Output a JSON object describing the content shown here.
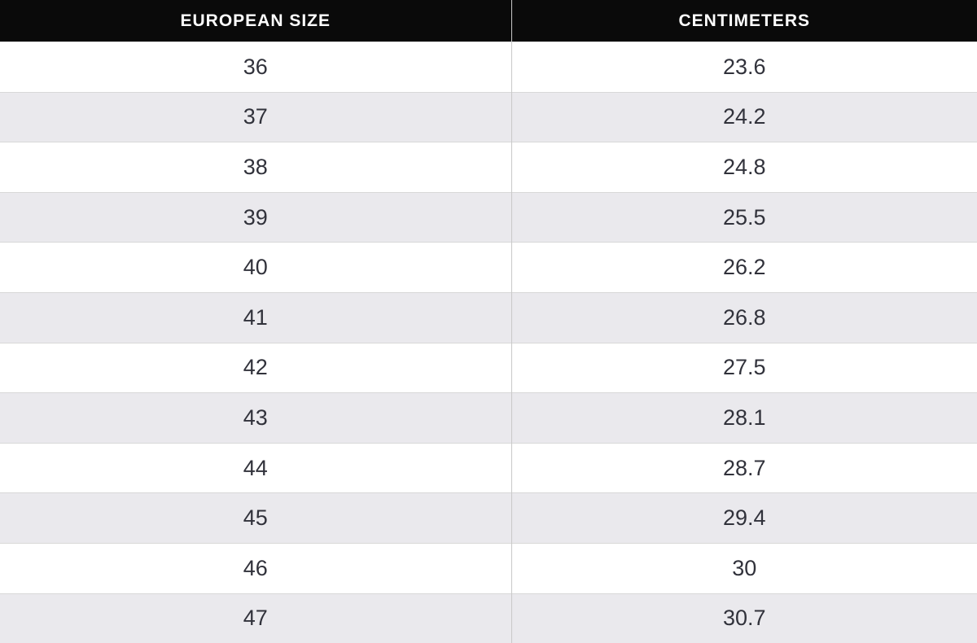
{
  "colors": {
    "header_bg": "#0A0A0A",
    "header_text": "#FFFFFF",
    "row_white": "#FFFFFF",
    "row_alt_gray": "#EAE9ED",
    "row_border": "#D8D8D8",
    "column_divider": "#C9C9C9",
    "cell_text": "#31323B"
  },
  "size_chart": {
    "columns": [
      "EUROPEAN SIZE",
      "CENTIMETERS"
    ],
    "rows": [
      [
        "36",
        "23.6"
      ],
      [
        "37",
        "24.2"
      ],
      [
        "38",
        "24.8"
      ],
      [
        "39",
        "25.5"
      ],
      [
        "40",
        "26.2"
      ],
      [
        "41",
        "26.8"
      ],
      [
        "42",
        "27.5"
      ],
      [
        "43",
        "28.1"
      ],
      [
        "44",
        "28.7"
      ],
      [
        "45",
        "29.4"
      ],
      [
        "46",
        "30"
      ],
      [
        "47",
        "30.7"
      ]
    ]
  },
  "chart_data": {
    "type": "table",
    "columns": [
      "EUROPEAN SIZE",
      "CENTIMETERS"
    ],
    "european_sizes": [
      36,
      37,
      38,
      39,
      40,
      41,
      42,
      43,
      44,
      45,
      46,
      47
    ],
    "centimeters": [
      23.6,
      24.2,
      24.8,
      25.5,
      26.2,
      26.8,
      27.5,
      28.1,
      28.7,
      29.4,
      30,
      30.7
    ],
    "layout": {
      "header_style": "black-bar-white-text",
      "zebra_striping": true,
      "first_body_row": "white",
      "last_row_clipped": true
    }
  }
}
